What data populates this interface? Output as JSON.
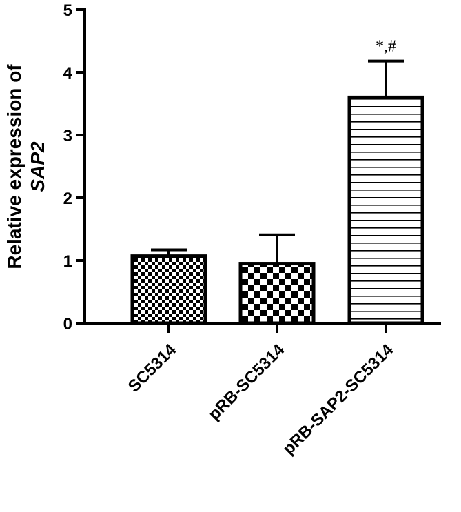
{
  "chart_data": {
    "type": "bar",
    "ylabel": "Relative expression of",
    "ylabel_italic": "SAP2",
    "ylim": [
      0,
      5
    ],
    "yticks": [
      "0",
      "1",
      "2",
      "3",
      "4",
      "5"
    ],
    "grid": false,
    "categories": [
      "SC5314",
      "pRB-SC5314",
      "pRB-SAP2-SC5314"
    ],
    "values": [
      1.07,
      0.95,
      3.6
    ],
    "errors": [
      0.1,
      0.46,
      0.58
    ],
    "patterns": [
      "fine-checker",
      "coarse-checker",
      "horizontal-lines"
    ],
    "annotations": [
      "",
      "",
      "*,#"
    ]
  }
}
